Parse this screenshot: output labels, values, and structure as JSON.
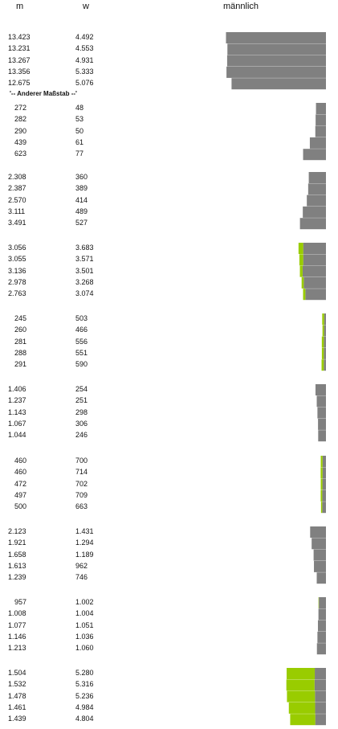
{
  "header": {
    "col_m": "m",
    "col_w": "w",
    "title": "männlich"
  },
  "note": "'-- Anderer Maßstab --'",
  "colors": {
    "male": "#808080",
    "female": "#99cc00"
  },
  "chart_data": {
    "type": "bar",
    "title": "männlich",
    "columns": [
      "m",
      "w"
    ],
    "groups": [
      {
        "rows": [
          {
            "m": "13.423",
            "w": "4.492",
            "mv": 13423,
            "wv": 4492
          },
          {
            "m": "13.231",
            "w": "4.553",
            "mv": 13231,
            "wv": 4553
          },
          {
            "m": "13.267",
            "w": "4.931",
            "mv": 13267,
            "wv": 4931
          },
          {
            "m": "13.356",
            "w": "5.333",
            "mv": 13356,
            "wv": 5333
          },
          {
            "m": "12.675",
            "w": "5.076",
            "mv": 12675,
            "wv": 5076
          }
        ]
      },
      {
        "rows": [
          {
            "m": "272",
            "w": "48",
            "mv": 272,
            "wv": 48
          },
          {
            "m": "282",
            "w": "53",
            "mv": 282,
            "wv": 53
          },
          {
            "m": "290",
            "w": "50",
            "mv": 290,
            "wv": 50
          },
          {
            "m": "439",
            "w": "61",
            "mv": 439,
            "wv": 61
          },
          {
            "m": "623",
            "w": "77",
            "mv": 623,
            "wv": 77
          }
        ]
      },
      {
        "rows": [
          {
            "m": "2.308",
            "w": "360",
            "mv": 2308,
            "wv": 360
          },
          {
            "m": "2.387",
            "w": "389",
            "mv": 2387,
            "wv": 389
          },
          {
            "m": "2.570",
            "w": "414",
            "mv": 2570,
            "wv": 414
          },
          {
            "m": "3.111",
            "w": "489",
            "mv": 3111,
            "wv": 489
          },
          {
            "m": "3.491",
            "w": "527",
            "mv": 3491,
            "wv": 527
          }
        ]
      },
      {
        "rows": [
          {
            "m": "3.056",
            "w": "3.683",
            "mv": 3056,
            "wv": 3683
          },
          {
            "m": "3.055",
            "w": "3.571",
            "mv": 3055,
            "wv": 3571
          },
          {
            "m": "3.136",
            "w": "3.501",
            "mv": 3136,
            "wv": 3501
          },
          {
            "m": "2.978",
            "w": "3.268",
            "mv": 2978,
            "wv": 3268
          },
          {
            "m": "2.763",
            "w": "3.074",
            "mv": 2763,
            "wv": 3074
          }
        ]
      },
      {
        "rows": [
          {
            "m": "245",
            "w": "503",
            "mv": 245,
            "wv": 503
          },
          {
            "m": "260",
            "w": "466",
            "mv": 260,
            "wv": 466
          },
          {
            "m": "281",
            "w": "556",
            "mv": 281,
            "wv": 556
          },
          {
            "m": "288",
            "w": "551",
            "mv": 288,
            "wv": 551
          },
          {
            "m": "291",
            "w": "590",
            "mv": 291,
            "wv": 590
          }
        ]
      },
      {
        "rows": [
          {
            "m": "1.406",
            "w": "254",
            "mv": 1406,
            "wv": 254
          },
          {
            "m": "1.237",
            "w": "251",
            "mv": 1237,
            "wv": 251
          },
          {
            "m": "1.143",
            "w": "298",
            "mv": 1143,
            "wv": 298
          },
          {
            "m": "1.067",
            "w": "306",
            "mv": 1067,
            "wv": 306
          },
          {
            "m": "1.044",
            "w": "246",
            "mv": 1044,
            "wv": 246
          }
        ]
      },
      {
        "rows": [
          {
            "m": "460",
            "w": "700",
            "mv": 460,
            "wv": 700
          },
          {
            "m": "460",
            "w": "714",
            "mv": 460,
            "wv": 714
          },
          {
            "m": "472",
            "w": "702",
            "mv": 472,
            "wv": 702
          },
          {
            "m": "497",
            "w": "709",
            "mv": 497,
            "wv": 709
          },
          {
            "m": "500",
            "w": "663",
            "mv": 500,
            "wv": 663
          }
        ]
      },
      {
        "rows": [
          {
            "m": "2.123",
            "w": "1.431",
            "mv": 2123,
            "wv": 1431
          },
          {
            "m": "1.921",
            "w": "1.294",
            "mv": 1921,
            "wv": 1294
          },
          {
            "m": "1.658",
            "w": "1.189",
            "mv": 1658,
            "wv": 1189
          },
          {
            "m": "1.613",
            "w": "962",
            "mv": 1613,
            "wv": 962
          },
          {
            "m": "1.239",
            "w": "746",
            "mv": 1239,
            "wv": 746
          }
        ]
      },
      {
        "rows": [
          {
            "m": "957",
            "w": "1.002",
            "mv": 957,
            "wv": 1002
          },
          {
            "m": "1.008",
            "w": "1.004",
            "mv": 1008,
            "wv": 1004
          },
          {
            "m": "1.077",
            "w": "1.051",
            "mv": 1077,
            "wv": 1051
          },
          {
            "m": "1.146",
            "w": "1.036",
            "mv": 1146,
            "wv": 1036
          },
          {
            "m": "1.213",
            "w": "1.060",
            "mv": 1213,
            "wv": 1060
          }
        ]
      },
      {
        "rows": [
          {
            "m": "1.504",
            "w": "5.280",
            "mv": 1504,
            "wv": 5280
          },
          {
            "m": "1.532",
            "w": "5.316",
            "mv": 1532,
            "wv": 5316
          },
          {
            "m": "1.478",
            "w": "5.236",
            "mv": 1478,
            "wv": 5236
          },
          {
            "m": "1.461",
            "w": "4.984",
            "mv": 1461,
            "wv": 4984
          },
          {
            "m": "1.439",
            "w": "4.804",
            "mv": 1439,
            "wv": 4804
          }
        ]
      }
    ]
  }
}
